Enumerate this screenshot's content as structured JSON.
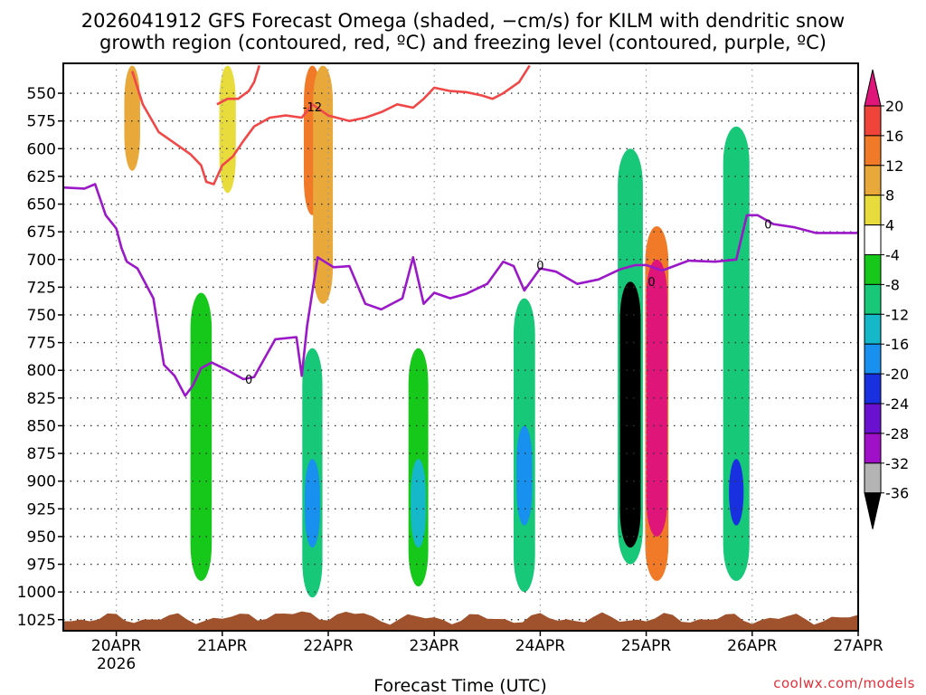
{
  "title_line1": "2026041912 GFS Forecast Omega (shaded, −cm/s) for KILM with dendritic snow",
  "title_line2": "growth region (contoured, red, ºC) and freezing level (contoured, purple, ºC)",
  "credit": "coolwx.com/models",
  "chart_data": {
    "type": "heatmap",
    "title": "2026041912 GFS Forecast Omega (shaded, −cm/s) for KILM with dendritic snow growth region (contoured, red, ºC) and freezing level (contoured, purple, ºC)",
    "xlabel": "Forecast Time (UTC)",
    "ylabel": "",
    "y_axis_inverted": true,
    "xlim_days": [
      -0.5,
      7.0
    ],
    "ylim_hpa": [
      1035,
      523
    ],
    "x_ticks": [
      {
        "day": 0,
        "label": "20APR",
        "sub": "2026"
      },
      {
        "day": 1,
        "label": "21APR",
        "sub": ""
      },
      {
        "day": 2,
        "label": "22APR",
        "sub": ""
      },
      {
        "day": 3,
        "label": "23APR",
        "sub": ""
      },
      {
        "day": 4,
        "label": "24APR",
        "sub": ""
      },
      {
        "day": 5,
        "label": "25APR",
        "sub": ""
      },
      {
        "day": 6,
        "label": "26APR",
        "sub": ""
      },
      {
        "day": 7,
        "label": "27APR",
        "sub": ""
      }
    ],
    "y_ticks": [
      550,
      575,
      600,
      625,
      650,
      675,
      700,
      725,
      750,
      775,
      800,
      825,
      850,
      875,
      900,
      925,
      950,
      975,
      1000,
      1025
    ],
    "grid": true,
    "colorbar": {
      "tick_labels": [
        "20",
        "16",
        "12",
        "8",
        "4",
        "-4",
        "-8",
        "-12",
        "-16",
        "-20",
        "-24",
        "-28",
        "-32",
        "-36"
      ],
      "bins": [
        {
          "range": "> 20",
          "color": "#e0157a"
        },
        {
          "range": "16 to 20",
          "color": "#f0443a"
        },
        {
          "range": "12 to 16",
          "color": "#f07a28"
        },
        {
          "range": "8 to 12",
          "color": "#e8a83a"
        },
        {
          "range": "4 to 8",
          "color": "#e8dc3c"
        },
        {
          "range": "-4 to 4",
          "color": "#ffffff"
        },
        {
          "range": "-8 to -4",
          "color": "#16c81a"
        },
        {
          "range": "-12 to -8",
          "color": "#16c878"
        },
        {
          "range": "-16 to -12",
          "color": "#14b8c8"
        },
        {
          "range": "-20 to -16",
          "color": "#1890f0"
        },
        {
          "range": "-24 to -20",
          "color": "#1830e0"
        },
        {
          "range": "-28 to -24",
          "color": "#6a10d0"
        },
        {
          "range": "-32 to -28",
          "color": "#a010c8"
        },
        {
          "range": "-36 to -32",
          "color": "#b4b4b4"
        },
        {
          "range": "< -36",
          "color": "#000000"
        }
      ]
    },
    "shaded_features": [
      {
        "day": 0.15,
        "p_top": 525,
        "p_bottom": 620,
        "value_bin": "8 to 12"
      },
      {
        "day": 1.05,
        "p_top": 525,
        "p_bottom": 640,
        "value_bin": "4 to 8"
      },
      {
        "day": 1.85,
        "p_top": 525,
        "p_bottom": 660,
        "value_bin": "12 to 16"
      },
      {
        "day": 1.95,
        "p_top": 525,
        "p_bottom": 740,
        "value_bin": "8 to 12"
      },
      {
        "day": 0.8,
        "p_top": 730,
        "p_bottom": 990,
        "value_bin": "-8 to -4"
      },
      {
        "day": 1.85,
        "p_top": 780,
        "p_bottom": 1005,
        "value_bin": "-12 to -8"
      },
      {
        "day": 1.85,
        "p_top": 880,
        "p_bottom": 960,
        "value_bin": "-20 to -16"
      },
      {
        "day": 2.85,
        "p_top": 780,
        "p_bottom": 995,
        "value_bin": "-8 to -4"
      },
      {
        "day": 2.85,
        "p_top": 880,
        "p_bottom": 960,
        "value_bin": "-16 to -12"
      },
      {
        "day": 3.85,
        "p_top": 735,
        "p_bottom": 1000,
        "value_bin": "-12 to -8"
      },
      {
        "day": 3.85,
        "p_top": 850,
        "p_bottom": 940,
        "value_bin": "-20 to -16"
      },
      {
        "day": 4.85,
        "p_top": 600,
        "p_bottom": 975,
        "value_bin": "-12 to -8"
      },
      {
        "day": 4.85,
        "p_top": 720,
        "p_bottom": 960,
        "value_bin": "< -36"
      },
      {
        "day": 5.1,
        "p_top": 670,
        "p_bottom": 990,
        "value_bin": "12 to 16"
      },
      {
        "day": 5.1,
        "p_top": 700,
        "p_bottom": 950,
        "value_bin": "> 20"
      },
      {
        "day": 5.85,
        "p_top": 580,
        "p_bottom": 990,
        "value_bin": "-12 to -8"
      },
      {
        "day": 5.85,
        "p_top": 880,
        "p_bottom": 940,
        "value_bin": "-24 to -20"
      }
    ],
    "surface_layer": {
      "label": "terrain below ground",
      "p_top": 1020,
      "color": "#a0522d"
    },
    "series": [
      {
        "name": "Dendritic snow growth region (-12 ºC)",
        "color": "#f04848",
        "x": [
          0.15,
          0.25,
          0.4,
          0.55,
          0.7,
          0.8,
          0.85,
          0.92,
          1.0,
          1.1,
          1.2,
          1.3,
          1.45,
          1.6,
          1.75,
          1.85,
          2.0,
          2.2,
          2.35,
          2.5,
          2.65,
          2.8,
          2.9,
          3.0,
          3.15,
          3.3,
          3.45,
          3.55,
          3.65,
          3.8,
          3.9
        ],
        "y": [
          530,
          560,
          585,
          595,
          605,
          615,
          630,
          632,
          615,
          607,
          593,
          580,
          572,
          570,
          572,
          560,
          570,
          575,
          572,
          567,
          560,
          563,
          555,
          545,
          548,
          549,
          552,
          555,
          550,
          540,
          525
        ]
      },
      {
        "name": "Dendritic snow growth region (-12 ºC), upper branch",
        "color": "#f04848",
        "x": [
          0.95,
          1.05,
          1.15,
          1.25,
          1.3,
          1.35
        ],
        "y": [
          560,
          555,
          555,
          548,
          540,
          525
        ]
      },
      {
        "name": "Freezing level (0 ºC)",
        "color": "#9a18c8",
        "x": [
          -0.5,
          -0.3,
          -0.2,
          -0.1,
          0.0,
          0.05,
          0.1,
          0.2,
          0.35,
          0.45,
          0.55,
          0.65,
          0.72,
          0.8,
          0.9,
          1.05,
          1.2,
          1.3,
          1.5,
          1.7,
          1.75,
          1.8,
          1.9,
          2.05,
          2.2,
          2.35,
          2.5,
          2.7,
          2.8,
          2.9,
          3.0,
          3.15,
          3.3,
          3.5,
          3.65,
          3.75,
          3.85,
          4.0,
          4.15,
          4.35,
          4.55,
          4.75,
          4.9,
          5.0,
          5.15,
          5.4,
          5.65,
          5.85,
          5.95,
          6.05,
          6.2,
          6.4,
          6.6,
          6.8,
          7.0
        ],
        "y": [
          635,
          636,
          632,
          660,
          672,
          690,
          702,
          708,
          735,
          795,
          805,
          823,
          814,
          798,
          793,
          800,
          808,
          806,
          772,
          770,
          805,
          760,
          698,
          707,
          706,
          740,
          745,
          735,
          698,
          740,
          730,
          735,
          731,
          722,
          702,
          706,
          728,
          708,
          711,
          722,
          718,
          709,
          705,
          705,
          710,
          701,
          702,
          700,
          660,
          660,
          668,
          671,
          676,
          676,
          676
        ]
      }
    ],
    "contour_labels": [
      {
        "text": "-12",
        "day": 1.85,
        "p": 562,
        "color": "#f04848"
      },
      {
        "text": "0",
        "day": 1.25,
        "p": 808,
        "color": "#9a18c8"
      },
      {
        "text": "0",
        "day": 5.05,
        "p": 720,
        "color": "#9a18c8"
      },
      {
        "text": "0",
        "day": 4.0,
        "p": 705,
        "color": "#9a18c8"
      },
      {
        "text": "0",
        "day": 6.15,
        "p": 668,
        "color": "#9a18c8"
      }
    ]
  }
}
